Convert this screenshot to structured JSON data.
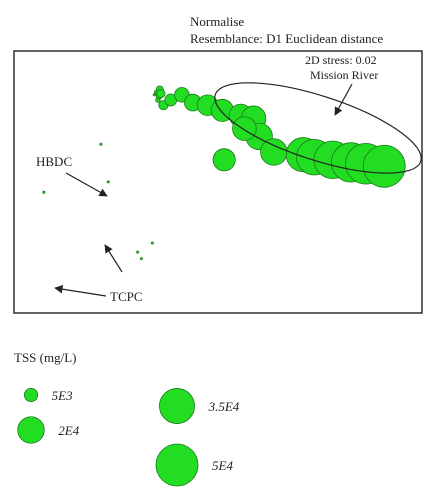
{
  "header": {
    "transform": "Normalise",
    "resemblance": "Resemblance: D1 Euclidean distance"
  },
  "chart_data": {
    "type": "scatter",
    "stress": "2D stress: 0.02",
    "colors": {
      "bubble_fill": "#22dd22",
      "bubble_stroke": "#1a7a1a",
      "frame": "#222222"
    },
    "annotations": [
      {
        "label": "Mission River",
        "target": "group"
      },
      {
        "label": "HBDC",
        "target": "point"
      },
      {
        "label": "TCPC",
        "target": "point"
      }
    ],
    "points": [
      {
        "x": 0.005,
        "y": 0.445,
        "tss": 50
      },
      {
        "x": 0.16,
        "y": 0.63,
        "tss": 50
      },
      {
        "x": 0.18,
        "y": 0.485,
        "tss": 50
      },
      {
        "x": 0.26,
        "y": 0.215,
        "tss": 50
      },
      {
        "x": 0.27,
        "y": 0.19,
        "tss": 50
      },
      {
        "x": 0.3,
        "y": 0.25,
        "tss": 50
      },
      {
        "x": 0.305,
        "y": 0.82,
        "tss": 100
      },
      {
        "x": 0.31,
        "y": 0.83,
        "tss": 300
      },
      {
        "x": 0.315,
        "y": 0.8,
        "tss": 600
      },
      {
        "x": 0.318,
        "y": 0.815,
        "tss": 1000
      },
      {
        "x": 0.32,
        "y": 0.84,
        "tss": 1500
      },
      {
        "x": 0.323,
        "y": 0.825,
        "tss": 2000
      },
      {
        "x": 0.33,
        "y": 0.78,
        "tss": 2500
      },
      {
        "x": 0.35,
        "y": 0.8,
        "tss": 4000
      },
      {
        "x": 0.38,
        "y": 0.82,
        "tss": 6000
      },
      {
        "x": 0.41,
        "y": 0.79,
        "tss": 8000
      },
      {
        "x": 0.45,
        "y": 0.78,
        "tss": 12000
      },
      {
        "x": 0.49,
        "y": 0.76,
        "tss": 14000
      },
      {
        "x": 0.54,
        "y": 0.74,
        "tss": 15000
      },
      {
        "x": 0.575,
        "y": 0.73,
        "tss": 17000
      },
      {
        "x": 0.59,
        "y": 0.66,
        "tss": 20000
      },
      {
        "x": 0.495,
        "y": 0.57,
        "tss": 14000
      },
      {
        "x": 0.55,
        "y": 0.69,
        "tss": 16000
      },
      {
        "x": 0.63,
        "y": 0.6,
        "tss": 20000
      },
      {
        "x": 0.71,
        "y": 0.59,
        "tss": 33000
      },
      {
        "x": 0.74,
        "y": 0.58,
        "tss": 36000
      },
      {
        "x": 0.79,
        "y": 0.57,
        "tss": 40000
      },
      {
        "x": 0.84,
        "y": 0.56,
        "tss": 44000
      },
      {
        "x": 0.88,
        "y": 0.555,
        "tss": 47000
      },
      {
        "x": 0.93,
        "y": 0.545,
        "tss": 50000
      }
    ]
  },
  "legend": {
    "title": "TSS (mg/L)",
    "items": [
      {
        "label": "5E3",
        "value": 5000
      },
      {
        "label": "2E4",
        "value": 20000
      },
      {
        "label": "3.5E4",
        "value": 35000
      },
      {
        "label": "5E4",
        "value": 50000
      }
    ]
  }
}
